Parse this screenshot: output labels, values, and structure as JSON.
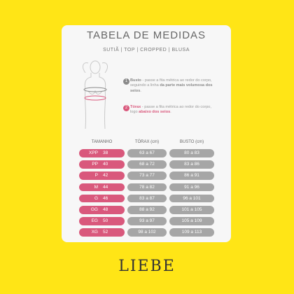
{
  "header": {
    "title": "TABELA DE MEDIDAS",
    "subtitle": "SUTIÃ | TOP | CROPPED | BLUSA"
  },
  "instructions": [
    {
      "number": "1",
      "color": "#8a8a8a",
      "parts": [
        {
          "text": "Busto",
          "bold": true
        },
        {
          "text": " - passe a fita métrica ao redor do corpo, seguindo a linha ",
          "bold": false
        },
        {
          "text": "da parte mais volumosa dos seios",
          "bold": true
        },
        {
          "text": ".",
          "bold": false
        }
      ]
    },
    {
      "number": "2",
      "color": "#d9587c",
      "parts": [
        {
          "text": "Tórax",
          "bold": true
        },
        {
          "text": " - passe a fita métrica ao redor do corpo, logo ",
          "bold": false
        },
        {
          "text": "abaixo dos seios",
          "bold": true
        },
        {
          "text": ".",
          "bold": false
        }
      ]
    }
  ],
  "table": {
    "header": [
      "TAMANHO",
      "TÓRAX (cm)",
      "BUSTO (cm)"
    ],
    "rows": [
      [
        "XPP",
        "38",
        "63 a 67",
        "80 a 83"
      ],
      [
        "PP",
        "40",
        "68 a 72",
        "83 a 86"
      ],
      [
        "P",
        "42",
        "73 a 77",
        "86 a 91"
      ],
      [
        "M",
        "44",
        "78 a 82",
        "91 a 96"
      ],
      [
        "G",
        "46",
        "83 a 87",
        "96 a 101"
      ],
      [
        "GG",
        "48",
        "88 a 92",
        "101 a 105"
      ],
      [
        "EG",
        "50",
        "93 a 97",
        "105 a 109"
      ],
      [
        "XG",
        "52",
        "98 a 102",
        "109 a 113"
      ]
    ]
  },
  "brand": "LIEBE"
}
